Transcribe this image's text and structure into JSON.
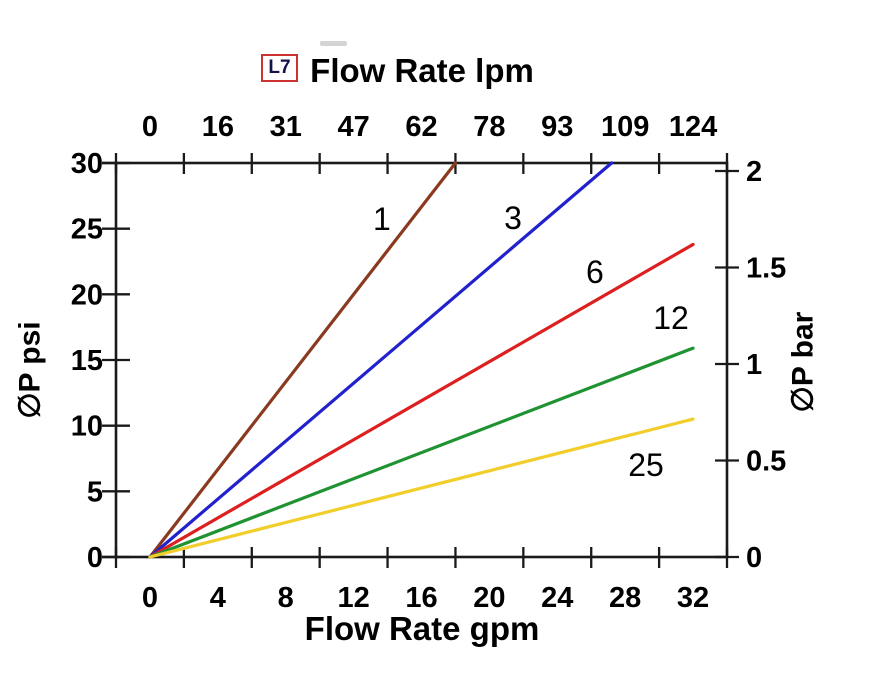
{
  "page": {
    "background": "#ffffff"
  },
  "badge": {
    "text": "L7",
    "border_color": "#cc3232",
    "text_color": "#13134a"
  },
  "chart_data": {
    "type": "line",
    "title": "Flow Rate lpm",
    "grid": "off",
    "legend": "inline-labels-on-lines",
    "axes": {
      "x_top": {
        "label": "Flow Rate lpm",
        "interval_labels": [
          "0",
          "16",
          "31",
          "47",
          "62",
          "78",
          "93",
          "109",
          "124"
        ],
        "tick_count": 10,
        "label_style": "between-ticks"
      },
      "x_bottom": {
        "label": "Flow Rate gpm",
        "interval_labels": [
          "0",
          "4",
          "8",
          "12",
          "16",
          "20",
          "24",
          "28",
          "32"
        ],
        "tick_count": 10,
        "label_style": "between-ticks",
        "range_gpm": [
          0,
          32
        ]
      },
      "y_left": {
        "label": "∅P psi",
        "ticks": [
          "0",
          "5",
          "10",
          "15",
          "20",
          "25",
          "30"
        ],
        "tick_values": [
          0,
          5,
          10,
          15,
          20,
          25,
          30
        ],
        "range": [
          0,
          30
        ]
      },
      "y_right": {
        "label": "∅P bar",
        "ticks": [
          "0",
          "0.5",
          "1",
          "1.5",
          "2"
        ],
        "tick_values": [
          0,
          0.5,
          1,
          1.5,
          2
        ],
        "range": [
          0,
          2.05
        ],
        "bar_to_psi": 14.696
      }
    },
    "series": [
      {
        "name": "1",
        "color": "#8a3a1e",
        "points_gpm_psi": [
          [
            0,
            0
          ],
          [
            18.0,
            30
          ]
        ],
        "label": {
          "text": "1",
          "gpm": 13.67,
          "psi": 25.74
        }
      },
      {
        "name": "3",
        "color": "#2121cd",
        "points_gpm_psi": [
          [
            0,
            0
          ],
          [
            27.2,
            30
          ]
        ],
        "label": {
          "text": "3",
          "gpm": 21.39,
          "psi": 25.81
        }
      },
      {
        "name": "6",
        "color": "#dd1f1f",
        "points_gpm_psi": [
          [
            0,
            0
          ],
          [
            32,
            23.8
          ]
        ],
        "label": {
          "text": "6",
          "gpm": 26.22,
          "psi": 21.7
        }
      },
      {
        "name": "12",
        "color": "#1f9231",
        "points_gpm_psi": [
          [
            0,
            0
          ],
          [
            32,
            15.9
          ]
        ],
        "label": {
          "text": "12",
          "gpm": 30.7,
          "psi": 18.2
        }
      },
      {
        "name": "25",
        "color": "#f1ce2b",
        "points_gpm_psi": [
          [
            0,
            0
          ],
          [
            32,
            10.5
          ]
        ],
        "label": {
          "text": "25",
          "gpm": 29.23,
          "psi": 7.0
        }
      }
    ]
  }
}
